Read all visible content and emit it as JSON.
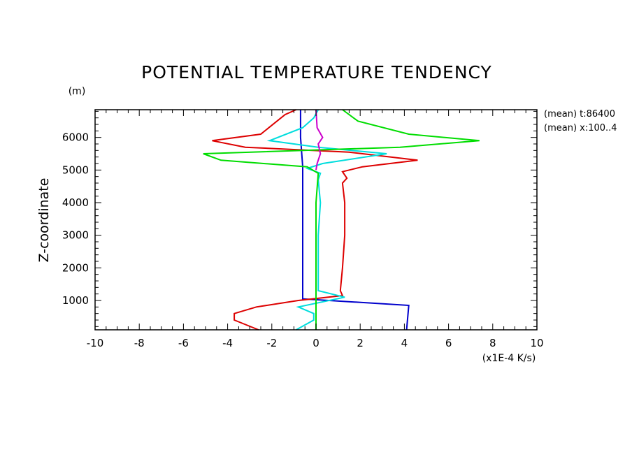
{
  "chart_data": {
    "type": "line",
    "title": "POTENTIAL TEMPERATURE TENDENCY",
    "ylabel": "Z-coordinate",
    "yunit": "(m)",
    "xunit": "(x1E-4 K/s)",
    "annotations": [
      "(mean) t:86400",
      "(mean) x:100..4"
    ],
    "xlim": [
      -10,
      10
    ],
    "ylim": [
      100,
      6850
    ],
    "xticks": [
      -10,
      -8,
      -6,
      -4,
      -2,
      0,
      2,
      4,
      6,
      8,
      10
    ],
    "xtick_labels": [
      "-10",
      "-8",
      "-6",
      "-4",
      "-2",
      "0",
      "2",
      "4",
      "6",
      "8",
      "10"
    ],
    "yticks": [
      1000,
      2000,
      3000,
      4000,
      5000,
      6000
    ],
    "ytick_labels": [
      "1000",
      "2000",
      "3000",
      "4000",
      "5000",
      "6000"
    ],
    "grid": false,
    "series": [
      {
        "color": "#0000cc",
        "points": [
          [
            -0.7,
            6850
          ],
          [
            -0.7,
            6000
          ],
          [
            -0.6,
            5100
          ],
          [
            -0.6,
            4000
          ],
          [
            -0.6,
            3000
          ],
          [
            -0.6,
            2000
          ],
          [
            -0.6,
            1050
          ],
          [
            4.2,
            850
          ],
          [
            4.1,
            100
          ]
        ]
      },
      {
        "color": "#dd0000",
        "points": [
          [
            -0.9,
            6850
          ],
          [
            -1.4,
            6700
          ],
          [
            -2.5,
            6100
          ],
          [
            -4.7,
            5900
          ],
          [
            -3.2,
            5700
          ],
          [
            1.5,
            5550
          ],
          [
            4.6,
            5300
          ],
          [
            2.1,
            5100
          ],
          [
            1.2,
            4950
          ],
          [
            1.4,
            4750
          ],
          [
            1.2,
            4600
          ],
          [
            1.3,
            4000
          ],
          [
            1.3,
            3000
          ],
          [
            1.2,
            2000
          ],
          [
            1.1,
            1300
          ],
          [
            1.2,
            1150
          ],
          [
            -0.8,
            1000
          ],
          [
            -2.7,
            800
          ],
          [
            -3.7,
            600
          ],
          [
            -3.7,
            400
          ],
          [
            -2.6,
            100
          ]
        ]
      },
      {
        "color": "#00dddd",
        "points": [
          [
            0.1,
            6850
          ],
          [
            -0.1,
            6600
          ],
          [
            -0.6,
            6300
          ],
          [
            -2.1,
            5900
          ],
          [
            0.1,
            5700
          ],
          [
            3.2,
            5500
          ],
          [
            0.3,
            5200
          ],
          [
            -0.4,
            5050
          ],
          [
            0.2,
            4900
          ],
          [
            0.1,
            4700
          ],
          [
            0.2,
            4000
          ],
          [
            0.1,
            3000
          ],
          [
            0.1,
            2000
          ],
          [
            0.1,
            1300
          ],
          [
            1.3,
            1100
          ],
          [
            -0.8,
            800
          ],
          [
            -0.1,
            600
          ],
          [
            -0.1,
            400
          ],
          [
            -0.9,
            100
          ]
        ]
      },
      {
        "color": "#00dd00",
        "points": [
          [
            1.2,
            6850
          ],
          [
            1.9,
            6500
          ],
          [
            4.2,
            6100
          ],
          [
            7.4,
            5900
          ],
          [
            3.8,
            5700
          ],
          [
            -5.1,
            5500
          ],
          [
            -4.3,
            5300
          ],
          [
            -0.4,
            5100
          ],
          [
            0.1,
            4900
          ],
          [
            0,
            4000
          ],
          [
            0,
            3000
          ],
          [
            0,
            2000
          ],
          [
            0,
            1000
          ],
          [
            0,
            100
          ]
        ]
      },
      {
        "color": "#cc00cc",
        "points": [
          [
            0,
            6850
          ],
          [
            0.05,
            6300
          ],
          [
            0.3,
            6000
          ],
          [
            0.1,
            5800
          ],
          [
            0.2,
            5500
          ],
          [
            0.05,
            5200
          ],
          [
            0,
            5000
          ]
        ]
      }
    ]
  }
}
